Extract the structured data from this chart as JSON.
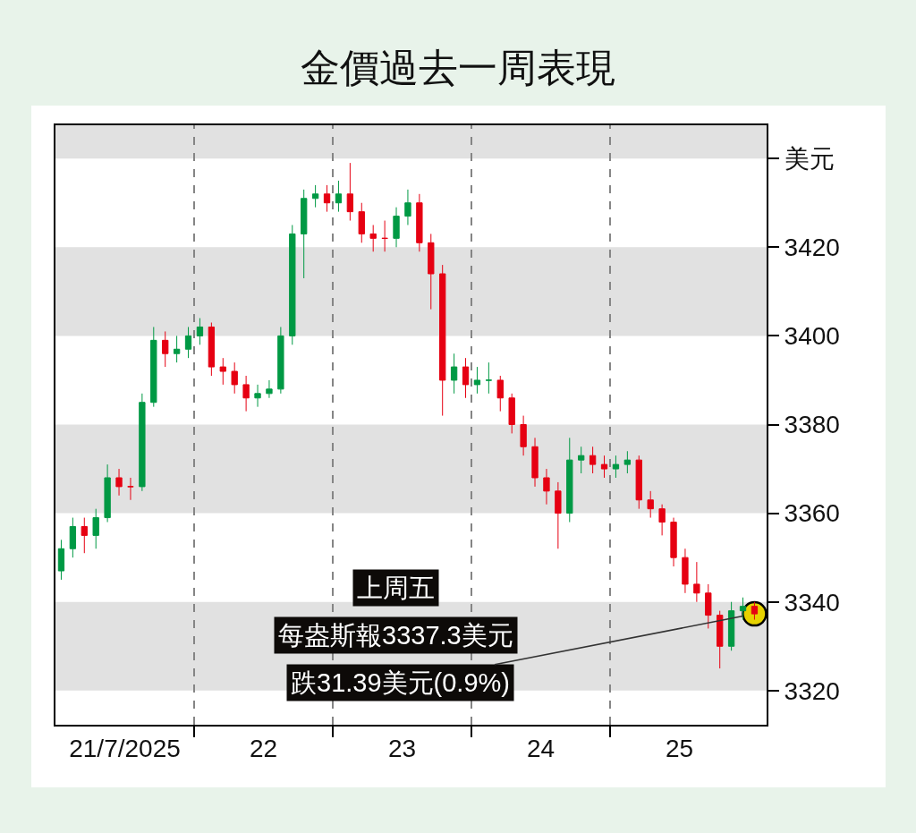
{
  "chart_data": {
    "type": "candlestick",
    "title": "金價過去一周表現",
    "x": [
      "2025-07-21T01:00",
      "2025-07-21T03:00",
      "2025-07-21T05:00",
      "2025-07-21T07:00",
      "2025-07-21T09:00",
      "2025-07-21T11:00",
      "2025-07-21T13:00",
      "2025-07-21T15:00",
      "2025-07-21T17:00",
      "2025-07-21T19:00",
      "2025-07-21T21:00",
      "2025-07-21T23:00",
      "2025-07-22T01:00",
      "2025-07-22T03:00",
      "2025-07-22T05:00",
      "2025-07-22T07:00",
      "2025-07-22T09:00",
      "2025-07-22T11:00",
      "2025-07-22T13:00",
      "2025-07-22T15:00",
      "2025-07-22T17:00",
      "2025-07-22T19:00",
      "2025-07-22T21:00",
      "2025-07-22T23:00",
      "2025-07-23T01:00",
      "2025-07-23T03:00",
      "2025-07-23T05:00",
      "2025-07-23T07:00",
      "2025-07-23T09:00",
      "2025-07-23T11:00",
      "2025-07-23T13:00",
      "2025-07-23T15:00",
      "2025-07-23T17:00",
      "2025-07-23T19:00",
      "2025-07-23T21:00",
      "2025-07-23T23:00",
      "2025-07-24T01:00",
      "2025-07-24T03:00",
      "2025-07-24T05:00",
      "2025-07-24T07:00",
      "2025-07-24T09:00",
      "2025-07-24T11:00",
      "2025-07-24T13:00",
      "2025-07-24T15:00",
      "2025-07-24T17:00",
      "2025-07-24T19:00",
      "2025-07-24T21:00",
      "2025-07-24T23:00",
      "2025-07-25T01:00",
      "2025-07-25T03:00",
      "2025-07-25T05:00",
      "2025-07-25T07:00",
      "2025-07-25T09:00",
      "2025-07-25T11:00",
      "2025-07-25T13:00",
      "2025-07-25T15:00",
      "2025-07-25T17:00",
      "2025-07-25T19:00",
      "2025-07-25T21:00",
      "2025-07-25T23:00",
      "2025-07-26T01:00"
    ],
    "ohlc": [
      [
        3347,
        3354,
        3345,
        3352
      ],
      [
        3352,
        3359,
        3350,
        3357
      ],
      [
        3357,
        3359,
        3351,
        3355
      ],
      [
        3355,
        3361,
        3352,
        3359
      ],
      [
        3359,
        3371,
        3358,
        3368
      ],
      [
        3368,
        3370,
        3364,
        3366
      ],
      [
        3366,
        3368,
        3363,
        3366
      ],
      [
        3366,
        3387,
        3365,
        3385
      ],
      [
        3385,
        3402,
        3384,
        3399
      ],
      [
        3399,
        3401,
        3393,
        3396
      ],
      [
        3396,
        3400,
        3394,
        3397
      ],
      [
        3397,
        3402,
        3395,
        3400
      ],
      [
        3400,
        3404,
        3398,
        3402
      ],
      [
        3402,
        3403,
        3391,
        3393
      ],
      [
        3393,
        3395,
        3389,
        3392
      ],
      [
        3392,
        3394,
        3387,
        3389
      ],
      [
        3389,
        3391,
        3383,
        3386
      ],
      [
        3386,
        3389,
        3384,
        3387
      ],
      [
        3387,
        3390,
        3386,
        3388
      ],
      [
        3388,
        3402,
        3387,
        3400
      ],
      [
        3400,
        3425,
        3398,
        3423
      ],
      [
        3423,
        3433,
        3413,
        3431
      ],
      [
        3431,
        3434,
        3429,
        3432
      ],
      [
        3432,
        3434,
        3428,
        3430
      ],
      [
        3430,
        3435,
        3428,
        3432
      ],
      [
        3432,
        3439,
        3426,
        3428
      ],
      [
        3428,
        3430,
        3421,
        3423
      ],
      [
        3423,
        3425,
        3419,
        3422
      ],
      [
        3422,
        3426,
        3419,
        3422
      ],
      [
        3422,
        3429,
        3420,
        3427
      ],
      [
        3427,
        3433,
        3425,
        3430
      ],
      [
        3430,
        3432,
        3419,
        3421
      ],
      [
        3421,
        3423,
        3406,
        3414
      ],
      [
        3414,
        3416,
        3382,
        3390
      ],
      [
        3390,
        3396,
        3387,
        3393
      ],
      [
        3393,
        3395,
        3386,
        3389
      ],
      [
        3389,
        3393,
        3387,
        3390
      ],
      [
        3390,
        3394,
        3387,
        3390
      ],
      [
        3390,
        3391,
        3383,
        3386
      ],
      [
        3386,
        3387,
        3378,
        3380
      ],
      [
        3380,
        3382,
        3373,
        3375
      ],
      [
        3375,
        3377,
        3366,
        3368
      ],
      [
        3368,
        3370,
        3362,
        3365
      ],
      [
        3365,
        3367,
        3352,
        3360
      ],
      [
        3360,
        3377,
        3358,
        3372
      ],
      [
        3372,
        3375,
        3369,
        3373
      ],
      [
        3373,
        3375,
        3369,
        3371
      ],
      [
        3371,
        3373,
        3368,
        3370
      ],
      [
        3370,
        3373,
        3368,
        3371
      ],
      [
        3371,
        3374,
        3369,
        3372
      ],
      [
        3372,
        3373,
        3361,
        3363
      ],
      [
        3363,
        3365,
        3359,
        3361
      ],
      [
        3361,
        3362,
        3355,
        3358
      ],
      [
        3358,
        3359,
        3348,
        3350
      ],
      [
        3350,
        3352,
        3342,
        3344
      ],
      [
        3344,
        3349,
        3340,
        3342
      ],
      [
        3342,
        3344,
        3334,
        3337
      ],
      [
        3337,
        3338,
        3325,
        3330
      ],
      [
        3330,
        3340,
        3329,
        3338
      ],
      [
        3338,
        3341,
        3336,
        3339
      ],
      [
        3339,
        3340,
        3336,
        3337.3
      ]
    ],
    "colors": [
      "#009944",
      "#009944",
      "#e60012",
      "#009944",
      "#009944",
      "#e60012",
      "#e60012",
      "#009944",
      "#009944",
      "#e60012",
      "#009944",
      "#009944",
      "#009944",
      "#e60012",
      "#e60012",
      "#e60012",
      "#e60012",
      "#009944",
      "#009944",
      "#009944",
      "#009944",
      "#009944",
      "#009944",
      "#e60012",
      "#009944",
      "#e60012",
      "#e60012",
      "#e60012",
      "#e60012",
      "#009944",
      "#009944",
      "#e60012",
      "#e60012",
      "#e60012",
      "#009944",
      "#e60012",
      "#009944",
      "#009944",
      "#e60012",
      "#e60012",
      "#e60012",
      "#e60012",
      "#e60012",
      "#e60012",
      "#009944",
      "#009944",
      "#e60012",
      "#e60012",
      "#009944",
      "#009944",
      "#e60012",
      "#e60012",
      "#e60012",
      "#e60012",
      "#e60012",
      "#e60012",
      "#e60012",
      "#e60012",
      "#009944",
      "#009944",
      "#e60012"
    ],
    "xlim": [
      "2025-07-21T00:00",
      "2025-07-26T03:06"
    ],
    "xticks": [
      {
        "value": "2025-07-21T12:00",
        "label": "21/7/2025"
      },
      {
        "value": "2025-07-22T00:00",
        "label": null
      },
      {
        "value": "2025-07-22T12:00",
        "label": "22"
      },
      {
        "value": "2025-07-23T00:00",
        "label": null
      },
      {
        "value": "2025-07-23T12:00",
        "label": "23"
      },
      {
        "value": "2025-07-24T00:00",
        "label": null
      },
      {
        "value": "2025-07-24T12:00",
        "label": "24"
      },
      {
        "value": "2025-07-25T00:00",
        "label": null
      },
      {
        "value": "2025-07-25T12:00",
        "label": "25"
      }
    ],
    "ylim": [
      3312.3,
      3447.5
    ],
    "yticks": [
      3320,
      3340,
      3360,
      3380,
      3400,
      3420,
      {
        "value": 3440,
        "label": "美元"
      }
    ],
    "bands": [
      {
        "axis": "y",
        "from": 3440,
        "to": 3447.5,
        "color": "#e1e1e1"
      },
      {
        "axis": "y",
        "from": 3400,
        "to": 3420,
        "color": "#e1e1e1"
      },
      {
        "axis": "y",
        "from": 3360,
        "to": 3380,
        "color": "#e1e1e1"
      },
      {
        "axis": "y",
        "from": 3320,
        "to": 3340,
        "color": "#e1e1e1"
      }
    ],
    "ref_lines": [
      {
        "axis": "x",
        "value": "2025-07-22T00:00",
        "color": "#858585",
        "line_style": "dashed"
      },
      {
        "axis": "x",
        "value": "2025-07-23T00:00",
        "color": "#858585",
        "line_style": "dashed"
      },
      {
        "axis": "x",
        "value": "2025-07-24T00:00",
        "color": "#858585",
        "line_style": "dashed"
      },
      {
        "axis": "x",
        "value": "2025-07-25T00:00",
        "color": "#858585",
        "line_style": "dashed"
      }
    ],
    "annotations": [
      "上周五",
      "每盎斯報3337.3美元",
      {
        "text": "跌31.39美元(0.9%)",
        "x": "2025-07-26T01:00",
        "y": 3337.3
      }
    ]
  }
}
